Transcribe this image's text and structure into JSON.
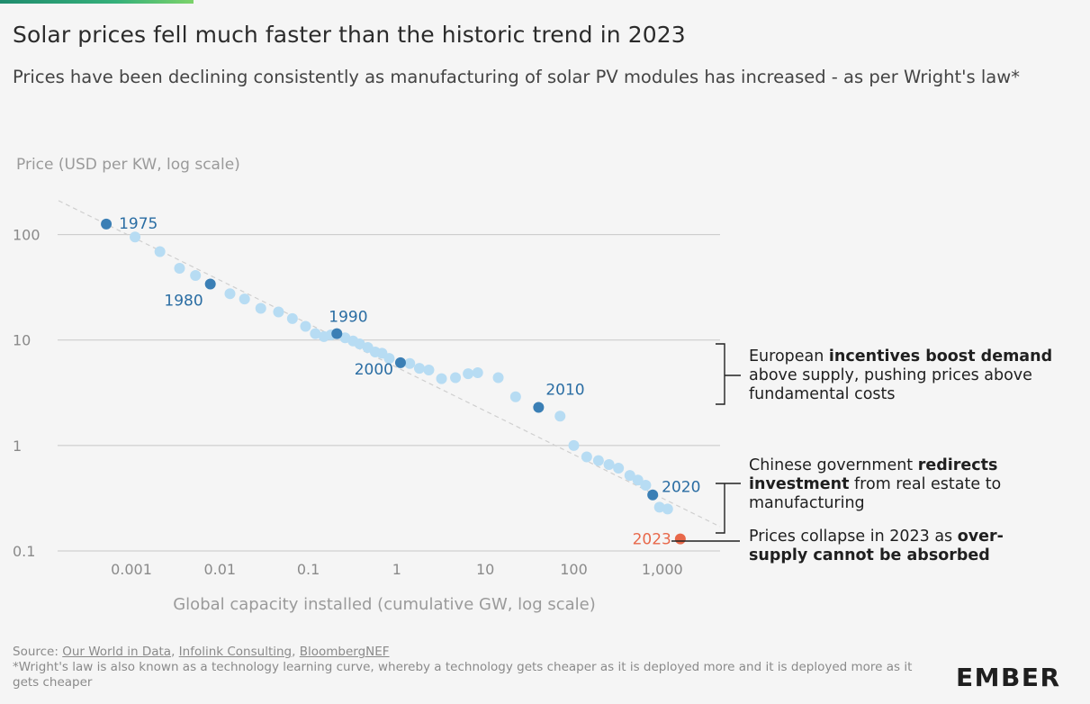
{
  "header": {
    "title": "Solar prices fell much faster than the historic trend in 2023",
    "subtitle": "Prices have been declining consistently as manufacturing of solar PV modules has increased - as per Wright's law*"
  },
  "annotations": [
    {
      "pre": "European ",
      "bold": "incentives boost demand",
      "post": " above supply, pushing prices above fundamental costs"
    },
    {
      "pre": "Chinese government ",
      "bold": "redirects investment",
      "post": " from real estate to manufacturing"
    },
    {
      "pre": "Prices collapse in 2023 as ",
      "bold": "over-supply cannot be absorbed",
      "post": ""
    }
  ],
  "footer": {
    "source_prefix": "Source: ",
    "sources": [
      "Our World in Data",
      "Infolink Consulting",
      "BloombergNEF"
    ],
    "footnote": "*Wright's law is also known as a technology learning curve, whereby a technology gets cheaper as it is deployed more and it is deployed more as it gets cheaper"
  },
  "logo": {
    "text": "EMBER"
  },
  "colors": {
    "point": "#b7dcf3",
    "highlight": "#3b7fb5",
    "label": "#2a6da3",
    "point_2023": "#e8684a",
    "grid": "#c8c8c8",
    "trend": "#cfcfcf"
  },
  "chart_data": {
    "type": "scatter",
    "ylabel": "Price (USD per KW, log scale)",
    "xlabel": "Global capacity installed (cumulative GW, log scale)",
    "xscale": "log",
    "yscale": "log",
    "xlim": [
      0.00015,
      4500
    ],
    "ylim": [
      0.1,
      250
    ],
    "grid": "horizontal",
    "legend": "none",
    "y_ticks": [
      {
        "v": 100,
        "label": "100"
      },
      {
        "v": 10,
        "label": "10"
      },
      {
        "v": 1,
        "label": "1"
      },
      {
        "v": 0.1,
        "label": "0.1"
      }
    ],
    "x_ticks": [
      {
        "v": 0.001,
        "label": "0.001"
      },
      {
        "v": 0.01,
        "label": "0.01"
      },
      {
        "v": 0.1,
        "label": "0.1"
      },
      {
        "v": 1,
        "label": "1"
      },
      {
        "v": 10,
        "label": "10"
      },
      {
        "v": 100,
        "label": "100"
      },
      {
        "v": 1000,
        "label": "1,000"
      }
    ],
    "trend_line": [
      [
        0.00015,
        210
      ],
      [
        4500,
        0.17
      ]
    ],
    "points": [
      {
        "x": 0.00052,
        "y": 126,
        "label": "1975",
        "kind": "highlight"
      },
      {
        "x": 0.0011,
        "y": 95
      },
      {
        "x": 0.0021,
        "y": 69
      },
      {
        "x": 0.0035,
        "y": 48
      },
      {
        "x": 0.0053,
        "y": 41
      },
      {
        "x": 0.0078,
        "y": 34,
        "label": "1980",
        "kind": "highlight"
      },
      {
        "x": 0.013,
        "y": 27.5
      },
      {
        "x": 0.019,
        "y": 24.5
      },
      {
        "x": 0.029,
        "y": 20
      },
      {
        "x": 0.046,
        "y": 18.5
      },
      {
        "x": 0.066,
        "y": 16
      },
      {
        "x": 0.093,
        "y": 13.5
      },
      {
        "x": 0.12,
        "y": 11.5
      },
      {
        "x": 0.15,
        "y": 10.8
      },
      {
        "x": 0.18,
        "y": 11.2
      },
      {
        "x": 0.21,
        "y": 11.5,
        "label": "1990",
        "kind": "highlight"
      },
      {
        "x": 0.26,
        "y": 10.5
      },
      {
        "x": 0.32,
        "y": 9.8
      },
      {
        "x": 0.38,
        "y": 9.2
      },
      {
        "x": 0.47,
        "y": 8.5
      },
      {
        "x": 0.57,
        "y": 7.7
      },
      {
        "x": 0.68,
        "y": 7.5
      },
      {
        "x": 0.82,
        "y": 6.7
      },
      {
        "x": 1.1,
        "y": 6.1,
        "label": "2000",
        "kind": "highlight"
      },
      {
        "x": 1.4,
        "y": 6.0
      },
      {
        "x": 1.8,
        "y": 5.4
      },
      {
        "x": 2.3,
        "y": 5.2
      },
      {
        "x": 3.2,
        "y": 4.3
      },
      {
        "x": 4.6,
        "y": 4.4
      },
      {
        "x": 6.4,
        "y": 4.8
      },
      {
        "x": 8.2,
        "y": 4.9
      },
      {
        "x": 14,
        "y": 4.4
      },
      {
        "x": 22,
        "y": 2.9
      },
      {
        "x": 40,
        "y": 2.3,
        "label": "2010",
        "kind": "highlight"
      },
      {
        "x": 70,
        "y": 1.9
      },
      {
        "x": 100,
        "y": 1.0
      },
      {
        "x": 140,
        "y": 0.78
      },
      {
        "x": 190,
        "y": 0.72
      },
      {
        "x": 250,
        "y": 0.66
      },
      {
        "x": 320,
        "y": 0.61
      },
      {
        "x": 430,
        "y": 0.52
      },
      {
        "x": 530,
        "y": 0.47
      },
      {
        "x": 650,
        "y": 0.42
      },
      {
        "x": 780,
        "y": 0.34,
        "label": "2020",
        "kind": "highlight"
      },
      {
        "x": 930,
        "y": 0.26
      },
      {
        "x": 1150,
        "y": 0.25
      },
      {
        "x": 1600,
        "y": 0.13,
        "label": "2023",
        "kind": "accent"
      }
    ]
  }
}
